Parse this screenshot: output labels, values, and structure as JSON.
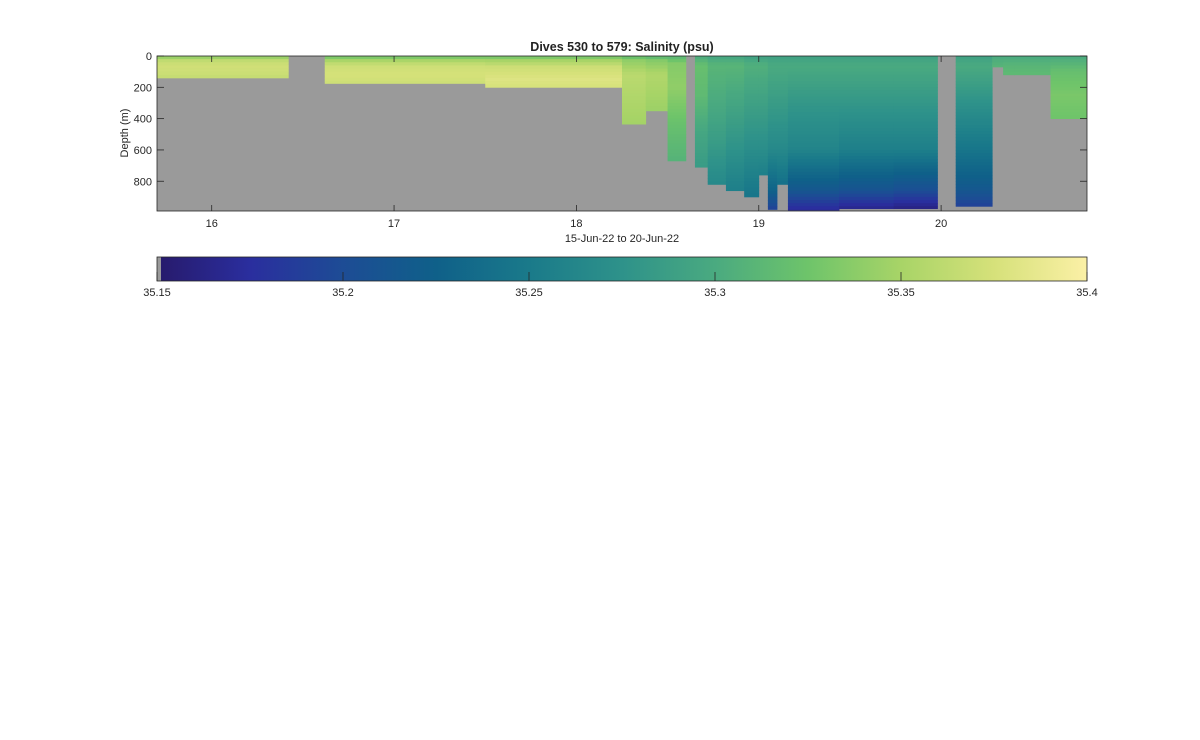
{
  "chart_data": {
    "type": "heatmap",
    "title": "Dives 530 to 579: Salinity (psu)",
    "xlabel": "15-Jun-22 to 20-Jun-22",
    "ylabel": "Depth (m)",
    "xlim": [
      15.7,
      20.8
    ],
    "ylim": [
      0,
      990
    ],
    "y_reversed": true,
    "xticks": [
      16,
      17,
      18,
      19,
      20
    ],
    "xtick_labels": [
      "16",
      "17",
      "18",
      "19",
      "20"
    ],
    "yticks": [
      0,
      200,
      400,
      600,
      800
    ],
    "ytick_labels": [
      "0",
      "200",
      "400",
      "600",
      "800"
    ],
    "nodata_color": "#9a9a9a",
    "colorbar": {
      "min": 35.15,
      "max": 35.4,
      "ticks": [
        35.15,
        35.2,
        35.25,
        35.3,
        35.35,
        35.4
      ],
      "tick_labels": [
        "35.15",
        "35.2",
        "35.25",
        "35.3",
        "35.35",
        "35.4"
      ],
      "colormap": [
        "#271a6b",
        "#2a2e9e",
        "#1d4c95",
        "#0f6089",
        "#1a7a8a",
        "#2e928a",
        "#4aaa80",
        "#6ec46a",
        "#a8d467",
        "#d6e17a",
        "#fbf0a6"
      ]
    },
    "dive_columns": [
      {
        "x": [
          15.7,
          16.42
        ],
        "max_depth": 140,
        "profile": [
          [
            0,
            35.33
          ],
          [
            20,
            35.36
          ],
          [
            60,
            35.372
          ],
          [
            100,
            35.37
          ],
          [
            140,
            35.365
          ]
        ]
      },
      {
        "x": [
          16.42,
          16.62
        ],
        "max_depth": 0,
        "profile": []
      },
      {
        "x": [
          16.62,
          17.5
        ],
        "max_depth": 175,
        "profile": [
          [
            0,
            35.32
          ],
          [
            20,
            35.345
          ],
          [
            60,
            35.37
          ],
          [
            120,
            35.375
          ],
          [
            175,
            35.37
          ]
        ]
      },
      {
        "x": [
          17.5,
          18.25
        ],
        "max_depth": 200,
        "profile": [
          [
            0,
            35.32
          ],
          [
            20,
            35.345
          ],
          [
            70,
            35.37
          ],
          [
            150,
            35.38
          ],
          [
            200,
            35.375
          ]
        ]
      },
      {
        "x": [
          18.25,
          18.38
        ],
        "max_depth": 435,
        "profile": [
          [
            0,
            35.315
          ],
          [
            30,
            35.34
          ],
          [
            120,
            35.36
          ],
          [
            250,
            35.355
          ],
          [
            435,
            35.348
          ]
        ]
      },
      {
        "x": [
          18.38,
          18.5
        ],
        "max_depth": 350,
        "profile": [
          [
            0,
            35.31
          ],
          [
            30,
            35.335
          ],
          [
            120,
            35.355
          ],
          [
            350,
            35.345
          ]
        ]
      },
      {
        "x": [
          18.5,
          18.6
        ],
        "max_depth": 670,
        "profile": [
          [
            0,
            35.31
          ],
          [
            50,
            35.335
          ],
          [
            200,
            35.34
          ],
          [
            450,
            35.32
          ],
          [
            670,
            35.308
          ]
        ]
      },
      {
        "x": [
          18.6,
          18.65
        ],
        "max_depth": 0,
        "profile": []
      },
      {
        "x": [
          18.65,
          18.72
        ],
        "max_depth": 710,
        "profile": [
          [
            0,
            35.3
          ],
          [
            60,
            35.32
          ],
          [
            250,
            35.315
          ],
          [
            500,
            35.295
          ],
          [
            710,
            35.285
          ]
        ]
      },
      {
        "x": [
          18.72,
          18.82
        ],
        "max_depth": 820,
        "profile": [
          [
            0,
            35.295
          ],
          [
            60,
            35.31
          ],
          [
            300,
            35.3
          ],
          [
            550,
            35.285
          ],
          [
            820,
            35.265
          ]
        ]
      },
      {
        "x": [
          18.82,
          18.92
        ],
        "max_depth": 860,
        "profile": [
          [
            0,
            35.295
          ],
          [
            60,
            35.31
          ],
          [
            300,
            35.295
          ],
          [
            600,
            35.275
          ],
          [
            860,
            35.255
          ]
        ]
      },
      {
        "x": [
          18.92,
          19.0
        ],
        "max_depth": 900,
        "profile": [
          [
            0,
            35.29
          ],
          [
            60,
            35.305
          ],
          [
            300,
            35.29
          ],
          [
            600,
            35.27
          ],
          [
            900,
            35.245
          ]
        ]
      },
      {
        "x": [
          19.0,
          19.05
        ],
        "max_depth": 760,
        "profile": [
          [
            0,
            35.29
          ],
          [
            60,
            35.305
          ],
          [
            300,
            35.29
          ],
          [
            600,
            35.27
          ],
          [
            760,
            35.255
          ]
        ]
      },
      {
        "x": [
          19.05,
          19.1
        ],
        "max_depth": 980,
        "profile": [
          [
            0,
            35.29
          ],
          [
            60,
            35.3
          ],
          [
            300,
            35.285
          ],
          [
            600,
            35.265
          ],
          [
            850,
            35.23
          ],
          [
            980,
            35.19
          ]
        ]
      },
      {
        "x": [
          19.1,
          19.16
        ],
        "max_depth": 820,
        "profile": [
          [
            0,
            35.29
          ],
          [
            60,
            35.3
          ],
          [
            300,
            35.285
          ],
          [
            600,
            35.265
          ],
          [
            820,
            35.24
          ]
        ]
      },
      {
        "x": [
          19.16,
          19.44
        ],
        "max_depth": 985,
        "profile": [
          [
            0,
            35.29
          ],
          [
            60,
            35.3
          ],
          [
            300,
            35.28
          ],
          [
            600,
            35.26
          ],
          [
            850,
            35.215
          ],
          [
            985,
            35.17
          ]
        ]
      },
      {
        "x": [
          19.44,
          19.74
        ],
        "max_depth": 975,
        "profile": [
          [
            0,
            35.29
          ],
          [
            60,
            35.3
          ],
          [
            300,
            35.28
          ],
          [
            600,
            35.255
          ],
          [
            850,
            35.21
          ],
          [
            975,
            35.165
          ]
        ]
      },
      {
        "x": [
          19.74,
          19.98
        ],
        "max_depth": 975,
        "profile": [
          [
            0,
            35.29
          ],
          [
            60,
            35.3
          ],
          [
            300,
            35.28
          ],
          [
            600,
            35.255
          ],
          [
            850,
            35.205
          ],
          [
            975,
            35.16
          ]
        ]
      },
      {
        "x": [
          19.98,
          20.08
        ],
        "max_depth": 0,
        "profile": []
      },
      {
        "x": [
          20.08,
          20.28
        ],
        "max_depth": 960,
        "profile": [
          [
            0,
            35.29
          ],
          [
            60,
            35.3
          ],
          [
            300,
            35.275
          ],
          [
            600,
            35.245
          ],
          [
            850,
            35.215
          ],
          [
            960,
            35.19
          ]
        ]
      },
      {
        "x": [
          20.28,
          20.34
        ],
        "max_depth": 70,
        "profile": [
          [
            0,
            35.3
          ],
          [
            70,
            35.31
          ]
        ]
      },
      {
        "x": [
          20.34,
          20.4
        ],
        "max_depth": 120,
        "profile": [
          [
            0,
            35.3
          ],
          [
            60,
            35.31
          ],
          [
            120,
            35.315
          ]
        ]
      },
      {
        "x": [
          20.4,
          20.6
        ],
        "max_depth": 120,
        "profile": [
          [
            0,
            35.3
          ],
          [
            60,
            35.31
          ],
          [
            120,
            35.315
          ]
        ]
      },
      {
        "x": [
          20.6,
          20.8
        ],
        "max_depth": 400,
        "profile": [
          [
            0,
            35.3
          ],
          [
            100,
            35.32
          ],
          [
            250,
            35.33
          ],
          [
            400,
            35.325
          ]
        ]
      }
    ]
  }
}
